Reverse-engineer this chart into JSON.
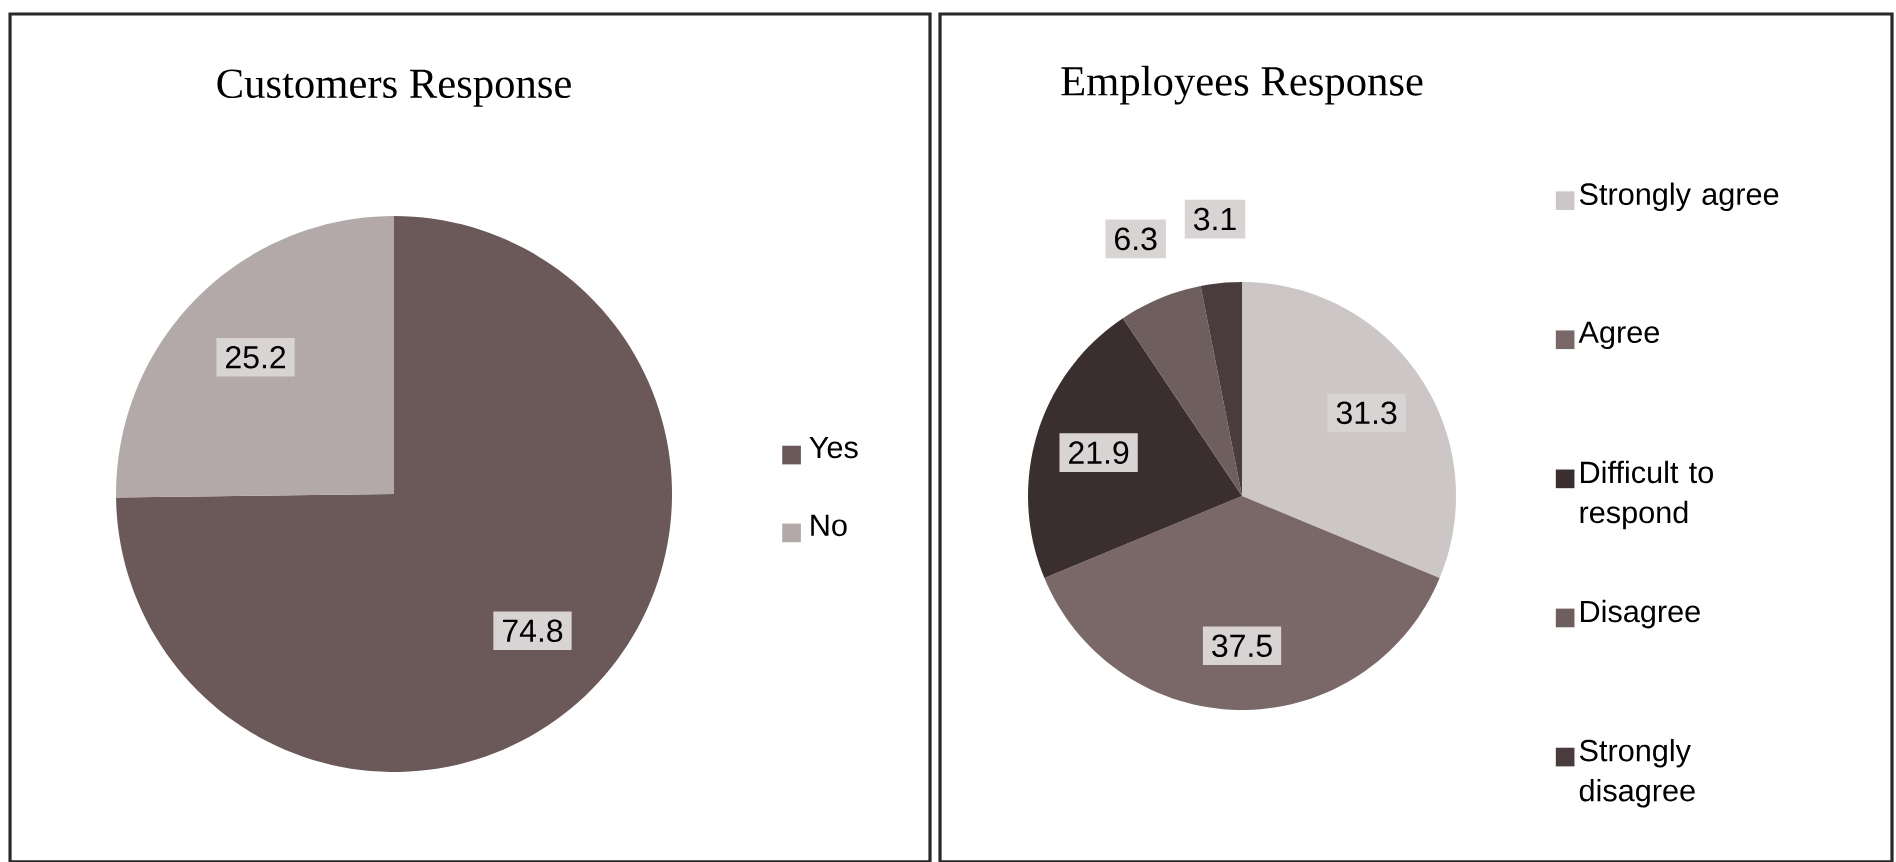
{
  "chart_data": [
    {
      "type": "pie",
      "title": "Customers Response",
      "categories": [
        "Yes",
        "No"
      ],
      "values": [
        74.8,
        25.2
      ],
      "colors": [
        "#6b5858",
        "#b3a9a9"
      ],
      "data_labels": true,
      "legend": "right"
    },
    {
      "type": "pie",
      "title": "Employees Response",
      "categories": [
        "Strongly agree",
        "Agree",
        "Difficult to respond",
        "Disagree",
        "Strongly disagree"
      ],
      "values": [
        31.3,
        37.5,
        21.9,
        6.3,
        3.1
      ],
      "colors": [
        "#cdc6c6",
        "#7a6868",
        "#3a2e2e",
        "#6e5e5e",
        "#4a3c3c"
      ],
      "data_labels": true,
      "legend": "right"
    }
  ]
}
